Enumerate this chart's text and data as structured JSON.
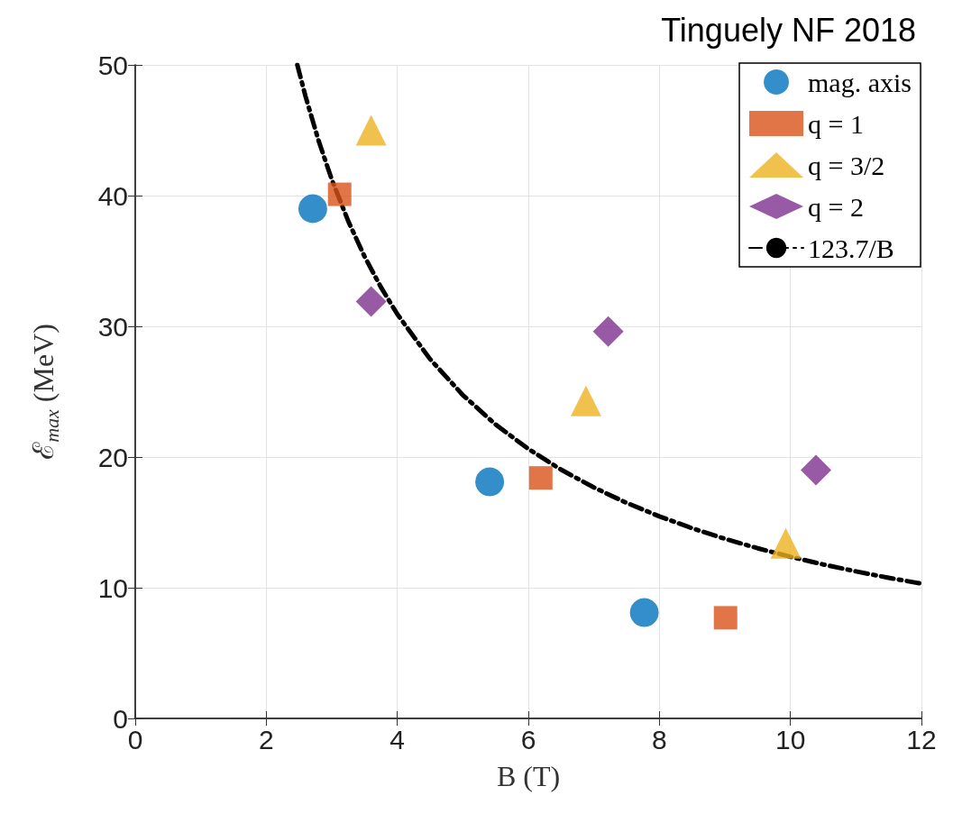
{
  "chart_data": {
    "type": "scatter",
    "title": "Tinguely NF 2018",
    "xlabel": "B (T)",
    "ylabel": "ℰ$_{max}$ (MeV)",
    "xlim": [
      0,
      12
    ],
    "xticks": [
      0,
      2,
      4,
      6,
      8,
      10,
      12
    ],
    "ylim": [
      0,
      50
    ],
    "yticks": [
      0,
      10,
      20,
      30,
      40,
      50
    ],
    "grid": true,
    "legend": "top right",
    "series": [
      {
        "name": "mag. axis",
        "color": "#0072bd",
        "marker": "circle",
        "x": [
          2.71,
          5.41,
          7.77
        ],
        "values": [
          39.0,
          18.1,
          8.1
        ]
      },
      {
        "name": "q = 1",
        "color": "#d95319",
        "marker": "square",
        "x": [
          3.12,
          6.19,
          9.01
        ],
        "values": [
          40.1,
          18.4,
          7.7
        ]
      },
      {
        "name": "q = 3/2",
        "color": "#edb120",
        "marker": "triangle",
        "x": [
          3.6,
          6.88,
          9.93
        ],
        "values": [
          45.0,
          24.3,
          13.4
        ]
      },
      {
        "name": "q = 2",
        "color": "#7e2f8e",
        "marker": "diamond",
        "x": [
          3.6,
          7.22,
          10.39
        ],
        "values": [
          31.9,
          29.6,
          19.0
        ]
      },
      {
        "name": "123.7/B",
        "type": "line",
        "color": "#000000",
        "marker": "none",
        "line_style": "dashed",
        "x": [
          2.474,
          2.6,
          2.8,
          3,
          3.25,
          3.5,
          3.75,
          4,
          4.5,
          5,
          5.5,
          6,
          6.5,
          7,
          7.5,
          8,
          8.5,
          9,
          9.5,
          10,
          10.5,
          11,
          11.5,
          12
        ],
        "values": [
          50,
          47.58,
          44.18,
          41.23,
          38.06,
          35.34,
          32.99,
          30.93,
          27.49,
          24.74,
          22.49,
          20.62,
          19.03,
          17.67,
          16.49,
          15.46,
          14.55,
          13.74,
          13.02,
          12.37,
          11.78,
          11.25,
          10.76,
          10.31
        ]
      }
    ]
  }
}
